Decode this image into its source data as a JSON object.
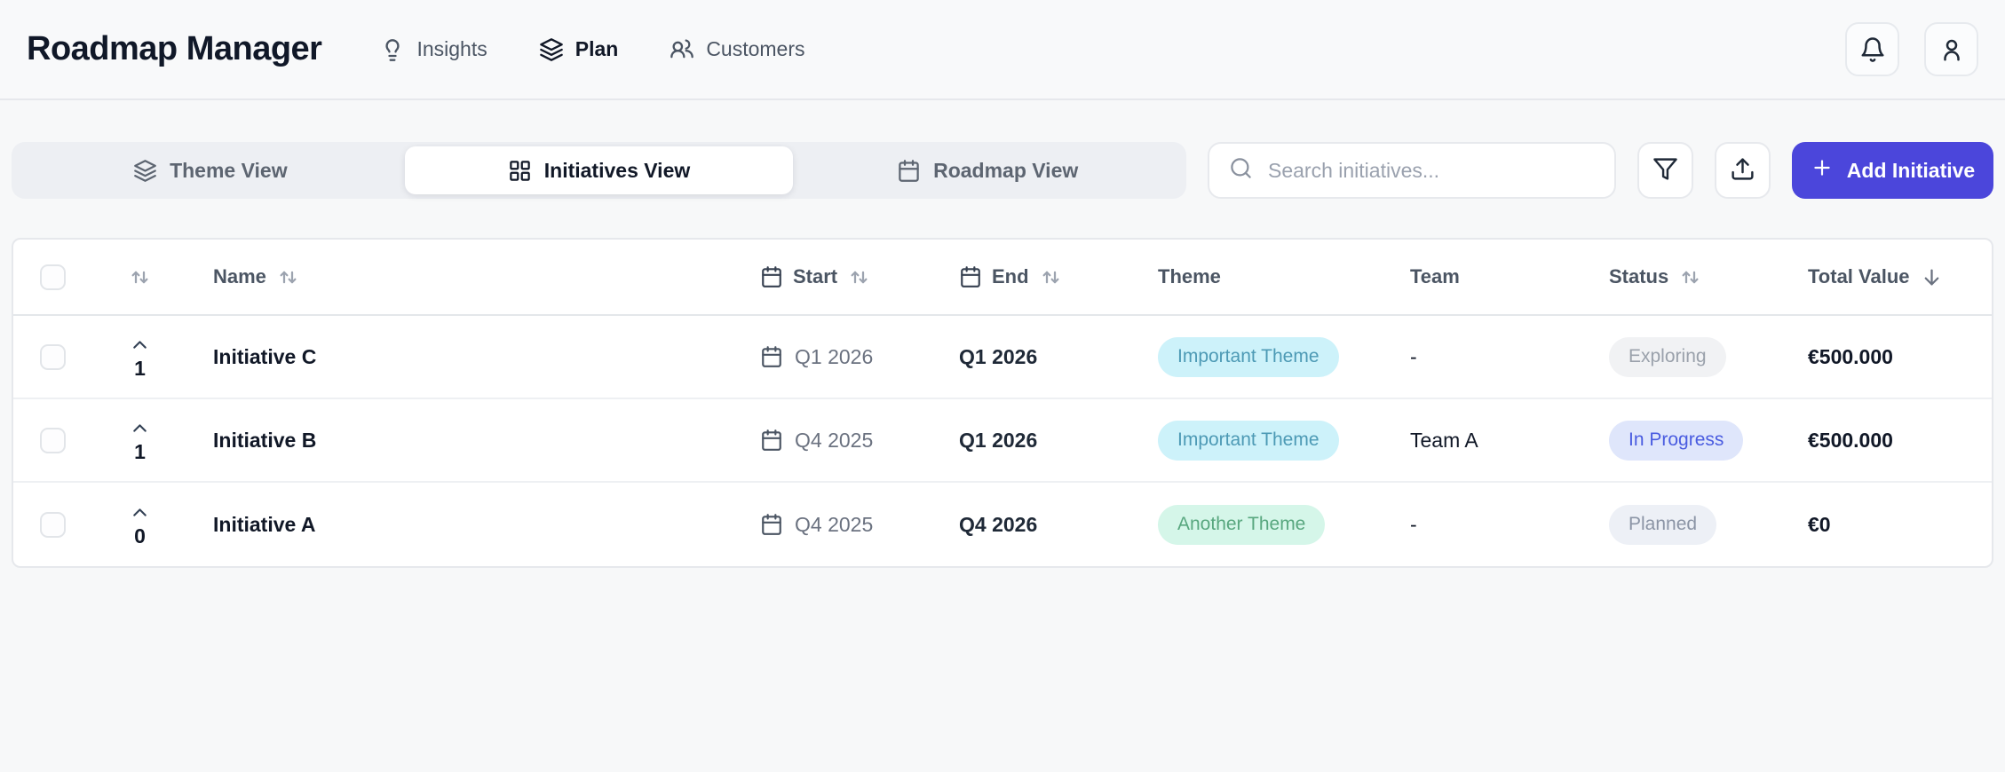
{
  "app": {
    "title": "Roadmap Manager"
  },
  "header": {
    "nav_items": [
      {
        "label": "Insights",
        "icon": "lightbulb",
        "active": false
      },
      {
        "label": "Plan",
        "icon": "layers",
        "active": true
      },
      {
        "label": "Customers",
        "icon": "users",
        "active": false
      }
    ],
    "actions": [
      {
        "name": "notifications",
        "icon": "bell"
      },
      {
        "name": "account",
        "icon": "user"
      }
    ]
  },
  "toolbar": {
    "view_tabs": [
      {
        "label": "Theme View",
        "icon": "layers",
        "active": false
      },
      {
        "label": "Initiatives View",
        "icon": "grid",
        "active": true
      },
      {
        "label": "Roadmap View",
        "icon": "calendar",
        "active": false
      }
    ],
    "search": {
      "placeholder": "Search initiatives...",
      "value": ""
    },
    "filter_button": {
      "icon": "filter"
    },
    "export_button": {
      "icon": "upload"
    },
    "add_button": {
      "label": "Add Initiative",
      "icon": "plus"
    }
  },
  "table": {
    "columns": [
      {
        "key": "votes",
        "label": "",
        "sort": "both"
      },
      {
        "key": "name",
        "label": "Name",
        "sort": "both"
      },
      {
        "key": "start",
        "label": "Start",
        "icon": "calendar",
        "sort": "both"
      },
      {
        "key": "end",
        "label": "End",
        "icon": "calendar",
        "sort": "both"
      },
      {
        "key": "theme",
        "label": "Theme"
      },
      {
        "key": "team",
        "label": "Team"
      },
      {
        "key": "status",
        "label": "Status",
        "sort": "both"
      },
      {
        "key": "value",
        "label": "Total Value",
        "sort": "desc"
      }
    ],
    "rows": [
      {
        "votes": "1",
        "name": "Initiative C",
        "start": "Q1 2026",
        "end": "Q1 2026",
        "theme": {
          "label": "Important Theme",
          "bg": "#cdf2fa",
          "color": "#4d9ab5"
        },
        "team": "-",
        "status": {
          "label": "Exploring",
          "bg": "#f1f2f4",
          "color": "#9aa1ab"
        },
        "value": "€500.000"
      },
      {
        "votes": "1",
        "name": "Initiative B",
        "start": "Q4 2025",
        "end": "Q1 2026",
        "theme": {
          "label": "Important Theme",
          "bg": "#cdf2fa",
          "color": "#4d9ab5"
        },
        "team": "Team A",
        "status": {
          "label": "In Progress",
          "bg": "#dfe6fb",
          "color": "#4a5ce0"
        },
        "value": "€500.000"
      },
      {
        "votes": "0",
        "name": "Initiative A",
        "start": "Q4 2025",
        "end": "Q4 2026",
        "theme": {
          "label": "Another Theme",
          "bg": "#d5f6e9",
          "color": "#58a77f"
        },
        "team": "-",
        "status": {
          "label": "Planned",
          "bg": "#edf0f6",
          "color": "#8b94a5"
        },
        "value": "€0"
      }
    ]
  },
  "colors": {
    "accent": "#4b46db",
    "page_bg": "#f7f8f9",
    "card_bg": "#ffffff",
    "border": "#e6e8ec",
    "text_primary": "#111827",
    "text_secondary": "#6b7280"
  }
}
